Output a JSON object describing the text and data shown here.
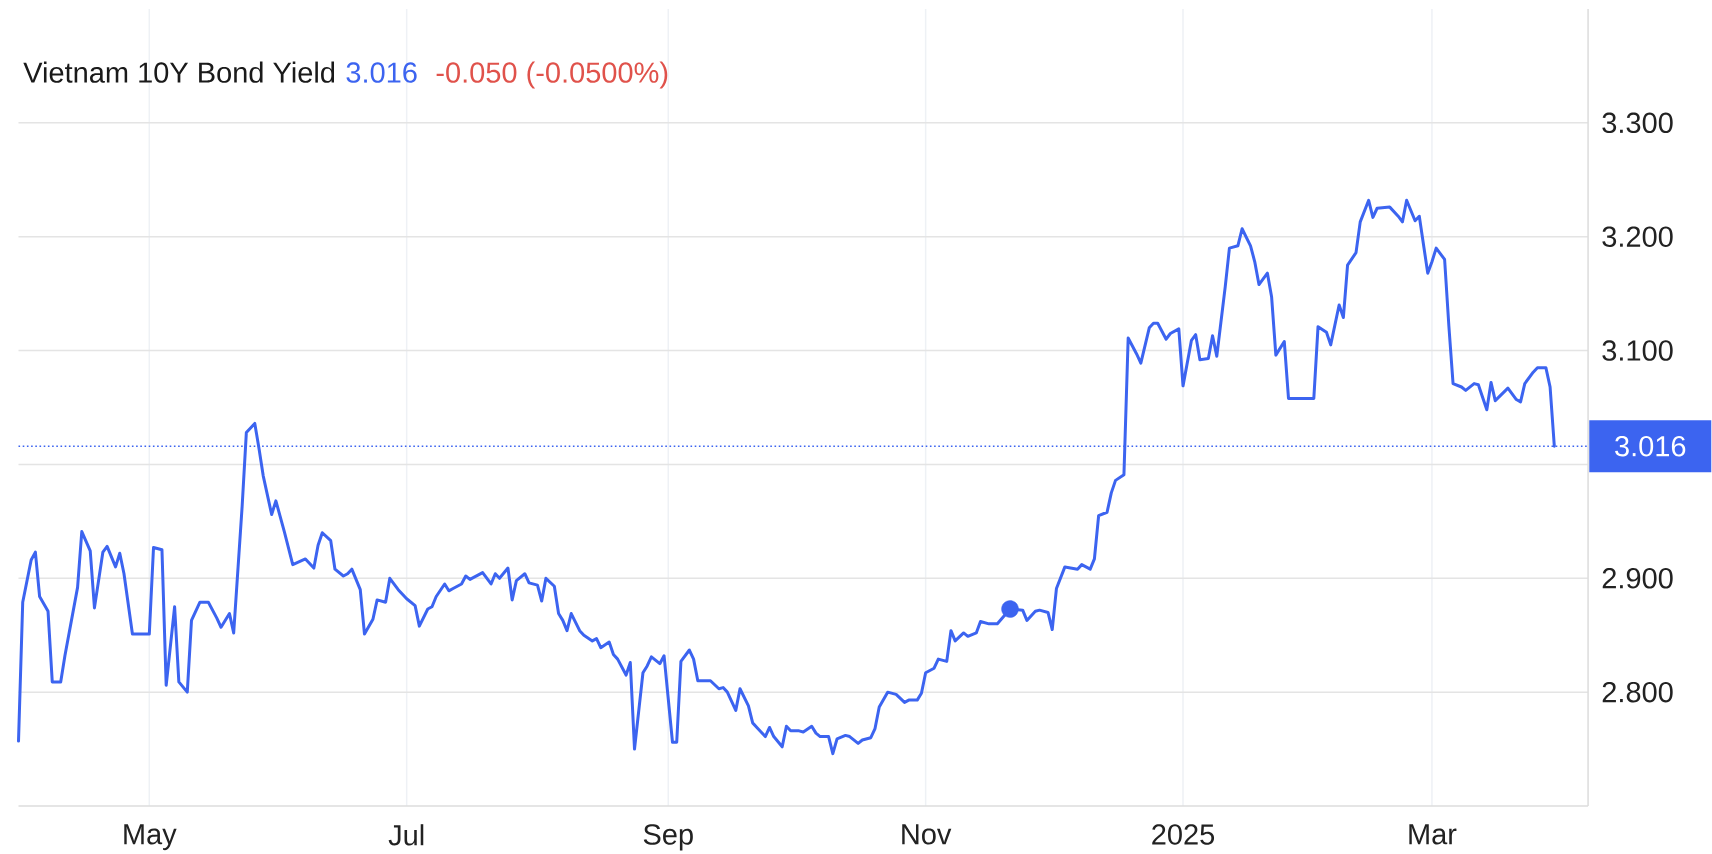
{
  "chart_data": {
    "type": "line",
    "title": "Vietnam 10Y Bond Yield",
    "annotations": [
      "3.016",
      "-0.050 (-0.0500%)"
    ],
    "xlim": [
      "2024-03-31",
      "2025-04-07"
    ],
    "xticks": [
      {
        "value": "2024-05-01",
        "label": "May"
      },
      {
        "value": "2024-07-01",
        "label": "Jul"
      },
      {
        "value": "2024-09-01",
        "label": "Sep"
      },
      {
        "value": "2024-11-01",
        "label": "Nov"
      },
      {
        "value": "2025-01-01",
        "label": "2025"
      },
      {
        "value": "2025-03-01",
        "label": "Mar"
      }
    ],
    "ylim": [
      2.7,
      3.4
    ],
    "yticks": [
      {
        "value": 2.8,
        "label": "2.800"
      },
      {
        "value": 2.9,
        "label": "2.900"
      },
      {
        "value": 3.0,
        "label": null
      },
      {
        "value": 3.1,
        "label": "3.100"
      },
      {
        "value": 3.2,
        "label": "3.200"
      },
      {
        "value": 3.3,
        "label": "3.300"
      }
    ],
    "grid": true,
    "ref_lines": [
      {
        "axis": "y",
        "value": 3.016,
        "label": "3.016",
        "color": "#3c64f0",
        "line_style": "dotted"
      }
    ],
    "series": [
      {
        "color": "#3c64f0",
        "x": [
          "2024-03-31",
          "2024-04-01",
          "2024-04-03",
          "2024-04-04",
          "2024-04-05",
          "2024-04-07",
          "2024-04-08",
          "2024-04-10",
          "2024-04-11",
          "2024-04-14",
          "2024-04-15",
          "2024-04-17",
          "2024-04-18",
          "2024-04-20",
          "2024-04-21",
          "2024-04-23",
          "2024-04-24",
          "2024-04-25",
          "2024-04-27",
          "2024-05-01",
          "2024-05-02",
          "2024-05-04",
          "2024-05-05",
          "2024-05-07",
          "2024-05-08",
          "2024-05-10",
          "2024-05-11",
          "2024-05-13",
          "2024-05-15",
          "2024-05-17",
          "2024-05-18",
          "2024-05-20",
          "2024-05-21",
          "2024-05-23",
          "2024-05-24",
          "2024-05-26",
          "2024-05-27",
          "2024-05-28",
          "2024-05-30",
          "2024-05-31",
          "2024-06-02",
          "2024-06-04",
          "2024-06-07",
          "2024-06-09",
          "2024-06-10",
          "2024-06-11",
          "2024-06-13",
          "2024-06-14",
          "2024-06-16",
          "2024-06-17",
          "2024-06-18",
          "2024-06-20",
          "2024-06-21",
          "2024-06-23",
          "2024-06-24",
          "2024-06-26",
          "2024-06-27",
          "2024-06-29",
          "2024-06-30",
          "2024-07-01",
          "2024-07-03",
          "2024-07-04",
          "2024-07-06",
          "2024-07-07",
          "2024-07-08",
          "2024-07-10",
          "2024-07-11",
          "2024-07-12",
          "2024-07-14",
          "2024-07-15",
          "2024-07-16",
          "2024-07-18",
          "2024-07-19",
          "2024-07-21",
          "2024-07-22",
          "2024-07-23",
          "2024-07-25",
          "2024-07-26",
          "2024-07-27",
          "2024-07-29",
          "2024-07-30",
          "2024-08-01",
          "2024-08-02",
          "2024-08-03",
          "2024-08-05",
          "2024-08-06",
          "2024-08-07",
          "2024-08-08",
          "2024-08-09",
          "2024-08-11",
          "2024-08-12",
          "2024-08-14",
          "2024-08-15",
          "2024-08-16",
          "2024-08-18",
          "2024-08-19",
          "2024-08-20",
          "2024-08-22",
          "2024-08-23",
          "2024-08-24",
          "2024-08-26",
          "2024-08-27",
          "2024-08-28",
          "2024-08-30",
          "2024-08-31",
          "2024-09-02",
          "2024-09-03",
          "2024-09-04",
          "2024-09-06",
          "2024-09-07",
          "2024-09-08",
          "2024-09-11",
          "2024-09-13",
          "2024-09-14",
          "2024-09-15",
          "2024-09-17",
          "2024-09-18",
          "2024-09-20",
          "2024-09-21",
          "2024-09-22",
          "2024-09-24",
          "2024-09-25",
          "2024-09-26",
          "2024-09-28",
          "2024-09-29",
          "2024-09-30",
          "2024-10-02",
          "2024-10-03",
          "2024-10-05",
          "2024-10-06",
          "2024-10-07",
          "2024-10-09",
          "2024-10-10",
          "2024-10-11",
          "2024-10-13",
          "2024-10-14",
          "2024-10-16",
          "2024-10-17",
          "2024-10-19",
          "2024-10-20",
          "2024-10-21",
          "2024-10-23",
          "2024-10-24",
          "2024-10-25",
          "2024-10-27",
          "2024-10-28",
          "2024-10-30",
          "2024-10-31",
          "2024-11-01",
          "2024-11-03",
          "2024-11-04",
          "2024-11-06",
          "2024-11-07",
          "2024-11-08",
          "2024-11-10",
          "2024-11-11",
          "2024-11-13",
          "2024-11-14",
          "2024-11-16",
          "2024-11-18",
          "2024-11-21",
          "2024-11-24",
          "2024-11-25",
          "2024-11-27",
          "2024-11-28",
          "2024-11-30",
          "2024-12-01",
          "2024-12-02",
          "2024-12-04",
          "2024-12-07",
          "2024-12-08",
          "2024-12-10",
          "2024-12-11",
          "2024-12-12",
          "2024-12-14",
          "2024-12-15",
          "2024-12-16",
          "2024-12-18",
          "2024-12-19",
          "2024-12-21",
          "2024-12-22",
          "2024-12-24",
          "2024-12-25",
          "2024-12-26",
          "2024-12-28",
          "2024-12-29",
          "2024-12-31",
          "2025-01-01",
          "2025-01-03",
          "2025-01-04",
          "2025-01-05",
          "2025-01-07",
          "2025-01-08",
          "2025-01-09",
          "2025-01-11",
          "2025-01-12",
          "2025-01-14",
          "2025-01-15",
          "2025-01-17",
          "2025-01-18",
          "2025-01-19",
          "2025-01-21",
          "2025-01-22",
          "2025-01-23",
          "2025-01-25",
          "2025-01-26",
          "2025-02-01",
          "2025-02-02",
          "2025-02-04",
          "2025-02-05",
          "2025-02-07",
          "2025-02-08",
          "2025-02-09",
          "2025-02-11",
          "2025-02-12",
          "2025-02-14",
          "2025-02-15",
          "2025-02-16",
          "2025-02-19",
          "2025-02-21",
          "2025-02-22",
          "2025-02-23",
          "2025-02-25",
          "2025-02-26",
          "2025-02-28",
          "2025-03-01",
          "2025-03-02",
          "2025-03-04",
          "2025-03-05",
          "2025-03-06",
          "2025-03-08",
          "2025-03-09",
          "2025-03-11",
          "2025-03-12",
          "2025-03-14",
          "2025-03-15",
          "2025-03-16",
          "2025-03-19",
          "2025-03-21",
          "2025-03-22",
          "2025-03-23",
          "2025-03-25",
          "2025-03-26",
          "2025-03-28",
          "2025-03-29",
          "2025-03-30"
        ],
        "values": [
          2.757,
          2.879,
          2.916,
          2.923,
          2.884,
          2.871,
          2.809,
          2.809,
          2.832,
          2.892,
          2.941,
          2.924,
          2.874,
          2.923,
          2.928,
          2.91,
          2.922,
          2.904,
          2.851,
          2.851,
          2.927,
          2.925,
          2.806,
          2.875,
          2.809,
          2.8,
          2.863,
          2.879,
          2.879,
          2.865,
          2.857,
          2.869,
          2.852,
          2.963,
          3.028,
          3.036,
          3.014,
          2.99,
          2.956,
          2.968,
          2.941,
          2.912,
          2.917,
          2.909,
          2.929,
          2.94,
          2.933,
          2.908,
          2.902,
          2.904,
          2.908,
          2.89,
          2.851,
          2.864,
          2.881,
          2.879,
          2.9,
          2.89,
          2.886,
          2.882,
          2.876,
          2.858,
          2.873,
          2.875,
          2.884,
          2.895,
          2.889,
          2.891,
          2.895,
          2.902,
          2.899,
          2.903,
          2.905,
          2.895,
          2.904,
          2.9,
          2.909,
          2.881,
          2.898,
          2.904,
          2.896,
          2.894,
          2.88,
          2.9,
          2.893,
          2.869,
          2.863,
          2.854,
          2.869,
          2.854,
          2.85,
          2.845,
          2.847,
          2.839,
          2.844,
          2.833,
          2.829,
          2.815,
          2.826,
          2.75,
          2.817,
          2.823,
          2.831,
          2.825,
          2.832,
          2.756,
          2.756,
          2.827,
          2.837,
          2.829,
          2.81,
          2.81,
          2.803,
          2.804,
          2.8,
          2.784,
          2.803,
          2.788,
          2.773,
          2.769,
          2.761,
          2.769,
          2.761,
          2.752,
          2.77,
          2.766,
          2.766,
          2.765,
          2.77,
          2.764,
          2.761,
          2.761,
          2.746,
          2.759,
          2.762,
          2.761,
          2.755,
          2.758,
          2.76,
          2.768,
          2.787,
          2.8,
          2.799,
          2.798,
          2.791,
          2.793,
          2.793,
          2.799,
          2.817,
          2.821,
          2.829,
          2.827,
          2.854,
          2.845,
          2.852,
          2.849,
          2.852,
          2.862,
          2.86,
          2.86,
          2.873,
          2.872,
          2.863,
          2.871,
          2.872,
          2.87,
          2.855,
          2.891,
          2.91,
          2.908,
          2.912,
          2.908,
          2.917,
          2.955,
          2.958,
          2.975,
          2.986,
          2.991,
          3.111,
          3.097,
          3.089,
          3.12,
          3.124,
          3.124,
          3.11,
          3.115,
          3.119,
          3.069,
          3.109,
          3.114,
          3.092,
          3.093,
          3.113,
          3.095,
          3.156,
          3.19,
          3.192,
          3.207,
          3.192,
          3.178,
          3.158,
          3.168,
          3.147,
          3.096,
          3.108,
          3.058,
          3.058,
          3.121,
          3.116,
          3.105,
          3.14,
          3.129,
          3.175,
          3.186,
          3.213,
          3.232,
          3.217,
          3.225,
          3.226,
          3.218,
          3.213,
          3.232,
          3.214,
          3.218,
          3.168,
          3.178,
          3.19,
          3.18,
          3.122,
          3.071,
          3.068,
          3.065,
          3.071,
          3.07,
          3.048,
          3.072,
          3.056,
          3.067,
          3.057,
          3.055,
          3.071,
          3.081,
          3.085,
          3.085,
          3.068,
          3.016
        ]
      },
      {
        "type": "scatter",
        "marker": "circle",
        "color": "#3c64f0",
        "x": [
          "2024-11-21"
        ],
        "values": [
          2.873
        ]
      }
    ]
  }
}
